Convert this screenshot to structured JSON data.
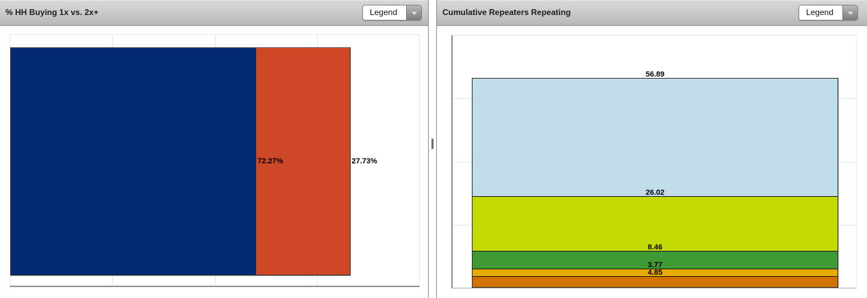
{
  "panels": {
    "left": {
      "title": "% HH Buying 1x vs. 2x+",
      "legend_label": "Legend"
    },
    "right": {
      "title": "Cumulative Repeaters Repeating",
      "legend_label": "Legend"
    }
  },
  "colors": {
    "gridline": "#dde7f2",
    "axis": "#8f8f8f",
    "value_label": "#000000"
  },
  "chart_data": [
    {
      "type": "bar",
      "title": "% HH Buying 1x vs. 2x+",
      "orientation": "horizontal",
      "stacked": true,
      "segment_order": "left-to-right",
      "segments": [
        {
          "value": 72.27,
          "label": "72.27%",
          "color": "#042a72"
        },
        {
          "value": 27.73,
          "label": "27.73%",
          "color": "#ce4726"
        }
      ],
      "xlim": [
        0,
        120
      ],
      "grid": true,
      "tick_labels_visible": false,
      "legend_position": "collapsed-dropdown"
    },
    {
      "type": "bar",
      "title": "Cumulative Repeaters Repeating",
      "orientation": "vertical",
      "stacked": true,
      "segment_order": "bottom-to-top",
      "segments": [
        {
          "value": 4.85,
          "label": "4.85",
          "color": "#d27300"
        },
        {
          "value": 3.77,
          "label": "3.77",
          "color": "#e7ab00"
        },
        {
          "value": 8.46,
          "label": "8.46",
          "color": "#3f9935"
        },
        {
          "value": 26.02,
          "label": "26.02",
          "color": "#c4da00"
        },
        {
          "value": 56.89,
          "label": "56.89",
          "color": "#c2ddea"
        }
      ],
      "ylim": [
        0,
        120
      ],
      "grid": true,
      "tick_labels_visible": false,
      "legend_position": "collapsed-dropdown"
    }
  ]
}
